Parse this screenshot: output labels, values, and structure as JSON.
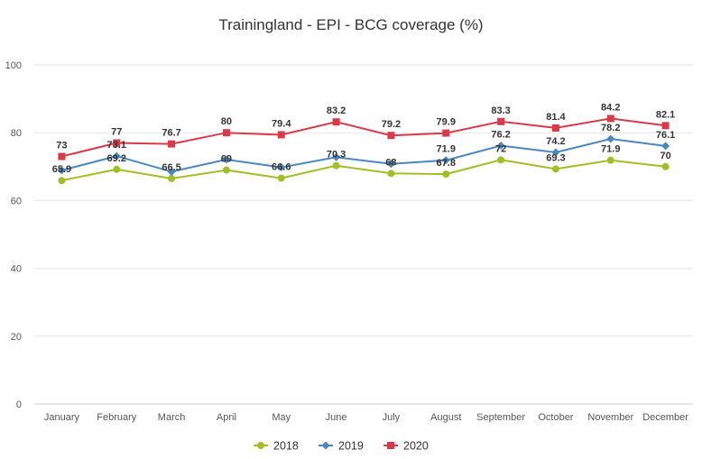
{
  "chart_data": {
    "type": "line",
    "title": "Trainingland - EPI - BCG coverage (%)",
    "categories": [
      "January",
      "February",
      "March",
      "April",
      "May",
      "June",
      "July",
      "August",
      "September",
      "October",
      "November",
      "December"
    ],
    "ylim": [
      0,
      100
    ],
    "yticks": [
      0,
      20,
      40,
      60,
      80,
      100
    ],
    "grid": "horizontal",
    "legend_position": "bottom",
    "series": [
      {
        "name": "2018",
        "color": "#9fbf26",
        "marker": "circle",
        "values": [
          65.9,
          69.2,
          66.5,
          69,
          66.6,
          70.3,
          68,
          67.8,
          72,
          69.3,
          71.9,
          70
        ]
      },
      {
        "name": "2019",
        "color": "#4a87bf",
        "marker": "diamond",
        "values": [
          68.9,
          73.1,
          68.5,
          72.1,
          69.8,
          72.8,
          70.8,
          71.9,
          76.2,
          74.2,
          78.2,
          76.1
        ],
        "labels": [
          null,
          "73.1",
          null,
          null,
          null,
          null,
          null,
          "71.9",
          "76.2",
          "74.2",
          "78.2",
          "76.1"
        ]
      },
      {
        "name": "2020",
        "color": "#d93a49",
        "marker": "square",
        "values": [
          73,
          77,
          76.7,
          80,
          79.4,
          83.2,
          79.2,
          79.9,
          83.3,
          81.4,
          84.2,
          82.1
        ]
      }
    ]
  }
}
